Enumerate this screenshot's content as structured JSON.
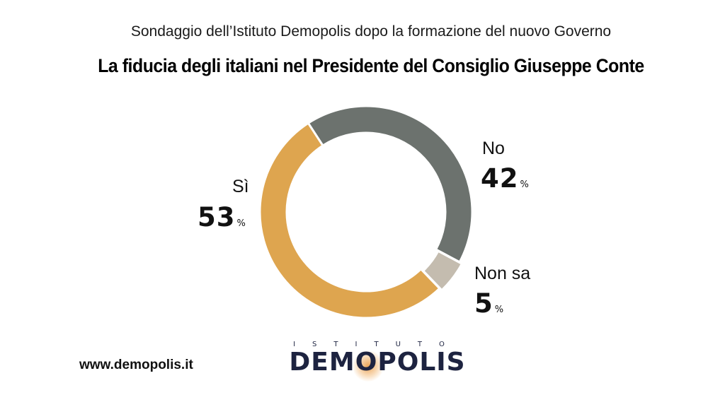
{
  "header": {
    "subtitle": "Sondaggio dell’Istituto Demopolis dopo la formazione del nuovo Governo",
    "title": "La fiducia degli italiani nel Presidente del Consiglio Giuseppe Conte"
  },
  "chart_data": {
    "type": "pie",
    "title": "La fiducia degli italiani nel Presidente del Consiglio Giuseppe Conte",
    "subtitle": "Sondaggio dell’Istituto Demopolis dopo la formazione del nuovo Governo",
    "slices": [
      {
        "label": "No",
        "value": 42,
        "value_text": "42",
        "unit": "%",
        "color": "#6c726e"
      },
      {
        "label": "Non sa",
        "value": 5,
        "value_text": "5",
        "unit": "%",
        "color": "#c4bcaf"
      },
      {
        "label": "Sì",
        "value": 53,
        "value_text": "53",
        "unit": "%",
        "color": "#dea54f"
      }
    ]
  },
  "footer": {
    "website": "www.demopolis.it",
    "logo_top": "ISTITUTO",
    "logo_main": "DEMOPOLIS"
  }
}
